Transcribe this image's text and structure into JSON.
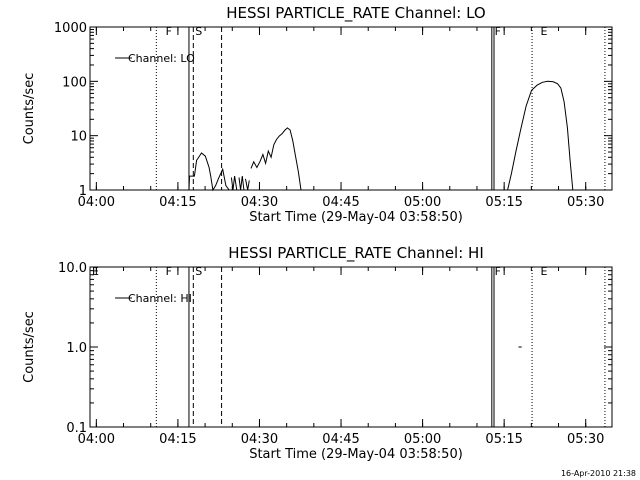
{
  "footer": {
    "timestamp": "16-Apr-2010 21:38"
  },
  "chart_data": [
    {
      "type": "line",
      "title": "HESSI PARTICLE_RATE Channel: LO",
      "xlabel": "Start Time (29-May-04 03:58:50)",
      "ylabel": "Counts/sec",
      "yscale": "log",
      "ylim": [
        1,
        1000
      ],
      "xlim_minutes": [
        0,
        96
      ],
      "x_tick_labels": [
        "04:00",
        "04:15",
        "04:30",
        "04:45",
        "05:00",
        "05:15",
        "05:30"
      ],
      "y_tick_labels": [
        "1",
        "10",
        "100",
        "1000"
      ],
      "legend": {
        "label": "Channel: LO",
        "placement": "top-left"
      },
      "grid": false,
      "flag_labels": [
        {
          "text": "F",
          "x_minutes": 14.5
        },
        {
          "text": "S",
          "x_minutes": 20.0
        },
        {
          "text": "F",
          "x_minutes": 75.0
        },
        {
          "text": "E",
          "x_minutes": 83.5
        }
      ],
      "vertical_markers": [
        {
          "x_minutes": 12.2,
          "style": "dotted"
        },
        {
          "x_minutes": 18.2,
          "style": "solid"
        },
        {
          "x_minutes": 19.0,
          "style": "dashed"
        },
        {
          "x_minutes": 24.2,
          "style": "dashed"
        },
        {
          "x_minutes": 73.9,
          "style": "solid"
        },
        {
          "x_minutes": 74.3,
          "style": "solid"
        },
        {
          "x_minutes": 81.3,
          "style": "dotted"
        },
        {
          "x_minutes": 94.7,
          "style": "dotted"
        }
      ],
      "series": [
        {
          "name": "Channel: LO",
          "segments": [
            [
              [
                16.2,
                1
              ],
              [
                18.2,
                1
              ],
              [
                18.3,
                1.8
              ],
              [
                19.2,
                1.8
              ],
              [
                19.6,
                3.5
              ],
              [
                20.5,
                4.8
              ],
              [
                21.2,
                4.2
              ],
              [
                21.9,
                2.6
              ],
              [
                22.2,
                1.8
              ],
              [
                22.6,
                1
              ],
              [
                23.1,
                1.2
              ],
              [
                23.6,
                1.6
              ],
              [
                24.4,
                2.4
              ],
              [
                25.0,
                1.2
              ],
              [
                25.6,
                1
              ]
            ],
            [
              [
                26.0,
                1.7
              ],
              [
                26.3,
                1
              ],
              [
                26.6,
                1.8
              ],
              [
                27.0,
                1
              ]
            ],
            [
              [
                27.4,
                1.7
              ],
              [
                27.7,
                1
              ],
              [
                28.0,
                1.8
              ],
              [
                28.3,
                1
              ]
            ],
            [
              [
                28.6,
                1.6
              ],
              [
                29.0,
                1
              ],
              [
                29.3,
                1.5
              ]
            ],
            [
              [
                29.6,
                2.5
              ],
              [
                30.1,
                3.3
              ],
              [
                30.7,
                2.6
              ],
              [
                31.3,
                3.4
              ],
              [
                31.8,
                4.5
              ],
              [
                32.3,
                3.1
              ],
              [
                32.8,
                5.2
              ],
              [
                33.3,
                4.0
              ],
              [
                33.8,
                6.8
              ],
              [
                34.3,
                8.5
              ],
              [
                34.8,
                9.8
              ],
              [
                35.3,
                10.8
              ],
              [
                35.8,
                12.5
              ],
              [
                36.3,
                13.9
              ],
              [
                36.8,
                12.7
              ],
              [
                37.3,
                8.0
              ],
              [
                37.8,
                4.2
              ],
              [
                38.3,
                2.2
              ],
              [
                38.8,
                1
              ]
            ],
            [
              [
                76.8,
                1
              ],
              [
                77.5,
                2.0
              ],
              [
                78.3,
                5.0
              ],
              [
                79.2,
                13
              ],
              [
                80.2,
                35
              ],
              [
                81.2,
                68
              ],
              [
                82.2,
                85
              ],
              [
                83.2,
                96
              ],
              [
                84.2,
                100
              ],
              [
                85.2,
                98
              ],
              [
                86.0,
                90
              ],
              [
                86.6,
                75
              ],
              [
                87.2,
                42
              ],
              [
                87.8,
                14
              ],
              [
                88.3,
                3.5
              ],
              [
                88.8,
                1
              ]
            ]
          ]
        }
      ]
    },
    {
      "type": "line",
      "title": "HESSI PARTICLE_RATE Channel: HI",
      "xlabel": "Start Time (29-May-04 03:58:50)",
      "ylabel": "Counts/sec",
      "yscale": "log",
      "ylim": [
        0.1,
        10
      ],
      "xlim_minutes": [
        0,
        96
      ],
      "x_tick_labels": [
        "04:00",
        "04:15",
        "04:30",
        "04:45",
        "05:00",
        "05:15",
        "05:30"
      ],
      "y_tick_labels": [
        "0.1",
        "1.0",
        "10.0"
      ],
      "legend": {
        "label": "Channel: HI",
        "placement": "top-left"
      },
      "grid": false,
      "flag_labels": [
        {
          "text": "E",
          "x_minutes": 1.0
        },
        {
          "text": "F",
          "x_minutes": 14.5
        },
        {
          "text": "S",
          "x_minutes": 20.0
        },
        {
          "text": "F",
          "x_minutes": 75.0
        },
        {
          "text": "E",
          "x_minutes": 83.5
        }
      ],
      "vertical_markers": [
        {
          "x_minutes": 12.2,
          "style": "dotted"
        },
        {
          "x_minutes": 18.2,
          "style": "solid"
        },
        {
          "x_minutes": 19.0,
          "style": "dashed"
        },
        {
          "x_minutes": 24.2,
          "style": "dashed"
        },
        {
          "x_minutes": 73.9,
          "style": "solid"
        },
        {
          "x_minutes": 74.3,
          "style": "solid"
        },
        {
          "x_minutes": 81.3,
          "style": "dotted"
        },
        {
          "x_minutes": 94.7,
          "style": "dotted"
        }
      ],
      "series": [
        {
          "name": "Channel: HI",
          "segments": [
            [
              [
                78.8,
                1.0
              ],
              [
                79.4,
                1.0
              ]
            ]
          ]
        }
      ]
    }
  ]
}
